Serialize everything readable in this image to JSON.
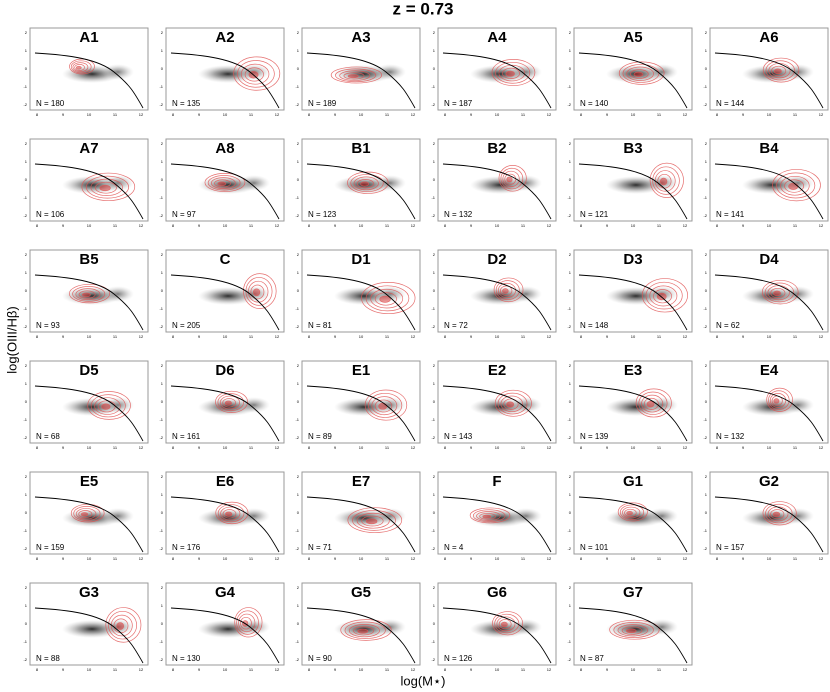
{
  "title": "z = 0.73",
  "x_label": "log(M⋆)",
  "y_label": "log(OIII/Hβ)",
  "axes": {
    "xticks": [
      "8",
      "9",
      "10",
      "11",
      "12"
    ],
    "yticks": [
      "2",
      "1",
      "0",
      "-1",
      "-2"
    ]
  },
  "panels": [
    {
      "label": "A1",
      "n": "N = 180"
    },
    {
      "label": "A2",
      "n": "N = 135"
    },
    {
      "label": "A3",
      "n": "N = 189"
    },
    {
      "label": "A4",
      "n": "N = 187"
    },
    {
      "label": "A5",
      "n": "N = 140"
    },
    {
      "label": "A6",
      "n": "N = 144"
    },
    {
      "label": "A7",
      "n": "N = 106"
    },
    {
      "label": "A8",
      "n": "N = 97"
    },
    {
      "label": "B1",
      "n": "N = 123"
    },
    {
      "label": "B2",
      "n": "N = 132"
    },
    {
      "label": "B3",
      "n": "N = 121"
    },
    {
      "label": "B4",
      "n": "N = 141"
    },
    {
      "label": "B5",
      "n": "N = 93"
    },
    {
      "label": "C",
      "n": "N = 205"
    },
    {
      "label": "D1",
      "n": "N = 81"
    },
    {
      "label": "D2",
      "n": "N = 72"
    },
    {
      "label": "D3",
      "n": "N = 148"
    },
    {
      "label": "D4",
      "n": "N = 62"
    },
    {
      "label": "D5",
      "n": "N = 68"
    },
    {
      "label": "D6",
      "n": "N = 161"
    },
    {
      "label": "E1",
      "n": "N = 89"
    },
    {
      "label": "E2",
      "n": "N = 143"
    },
    {
      "label": "E3",
      "n": "N = 139"
    },
    {
      "label": "E4",
      "n": "N = 132"
    },
    {
      "label": "E5",
      "n": "N = 159"
    },
    {
      "label": "E6",
      "n": "N = 176"
    },
    {
      "label": "E7",
      "n": "N = 71"
    },
    {
      "label": "F",
      "n": "N = 4"
    },
    {
      "label": "G1",
      "n": "N = 101"
    },
    {
      "label": "G2",
      "n": "N = 157"
    },
    {
      "label": "G3",
      "n": "N = 88"
    },
    {
      "label": "G4",
      "n": "N = 130"
    },
    {
      "label": "G5",
      "n": "N = 90"
    },
    {
      "label": "G6",
      "n": "N = 126"
    },
    {
      "label": "G7",
      "n": "N = 87"
    }
  ]
}
